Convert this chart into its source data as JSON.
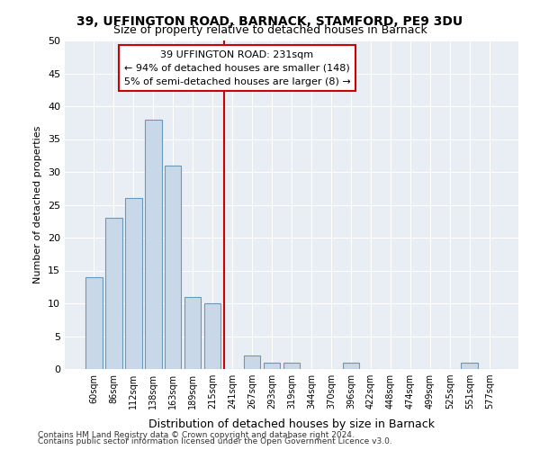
{
  "title1": "39, UFFINGTON ROAD, BARNACK, STAMFORD, PE9 3DU",
  "title2": "Size of property relative to detached houses in Barnack",
  "xlabel": "Distribution of detached houses by size in Barnack",
  "ylabel": "Number of detached properties",
  "categories": [
    "60sqm",
    "86sqm",
    "112sqm",
    "138sqm",
    "163sqm",
    "189sqm",
    "215sqm",
    "241sqm",
    "267sqm",
    "293sqm",
    "319sqm",
    "344sqm",
    "370sqm",
    "396sqm",
    "422sqm",
    "448sqm",
    "474sqm",
    "499sqm",
    "525sqm",
    "551sqm",
    "577sqm"
  ],
  "values": [
    14,
    23,
    26,
    38,
    31,
    11,
    10,
    0,
    2,
    1,
    1,
    0,
    0,
    1,
    0,
    0,
    0,
    0,
    0,
    1,
    0
  ],
  "bar_color": "#c8d8e8",
  "bar_edge_color": "#6699bb",
  "vline_x": 6.575,
  "vline_color": "#cc0000",
  "annotation_text": "39 UFFINGTON ROAD: 231sqm\n← 94% of detached houses are smaller (148)\n5% of semi-detached houses are larger (8) →",
  "annotation_box_color": "#ffffff",
  "annotation_box_edge": "#cc0000",
  "ylim": [
    0,
    50
  ],
  "yticks": [
    0,
    5,
    10,
    15,
    20,
    25,
    30,
    35,
    40,
    45,
    50
  ],
  "background_color": "#e8eef4",
  "footer1": "Contains HM Land Registry data © Crown copyright and database right 2024.",
  "footer2": "Contains public sector information licensed under the Open Government Licence v3.0."
}
